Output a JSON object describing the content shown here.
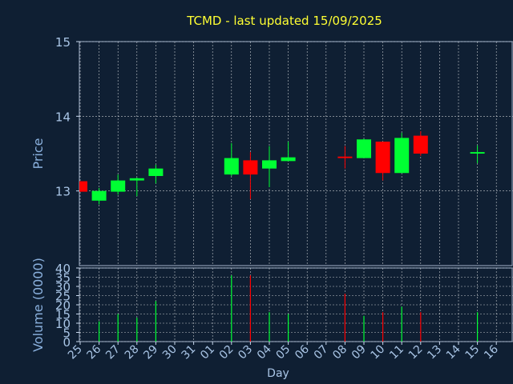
{
  "chart_data": {
    "type": "candlestick",
    "title": "TCMD - last updated 15/09/2025",
    "xlabel": "Day",
    "x_ticks": [
      "25",
      "26",
      "27",
      "28",
      "29",
      "30",
      "31",
      "01",
      "02",
      "03",
      "04",
      "05",
      "06",
      "07",
      "08",
      "09",
      "10",
      "11",
      "12",
      "13",
      "14",
      "15",
      "16"
    ],
    "price": {
      "ylabel": "Price",
      "ylim": [
        12.0,
        15.0
      ],
      "yticks": [
        "15",
        "14",
        "13"
      ],
      "ytick_values": [
        15,
        14,
        13
      ],
      "candles": [
        {
          "day": "25",
          "open": 13.13,
          "high": 13.13,
          "low": 12.99,
          "close": 12.99
        },
        {
          "day": "26",
          "open": 12.87,
          "high": 13.04,
          "low": 12.82,
          "close": 13.0
        },
        {
          "day": "27",
          "open": 12.99,
          "high": 13.22,
          "low": 12.95,
          "close": 13.14
        },
        {
          "day": "28",
          "open": 13.14,
          "high": 13.18,
          "low": 12.93,
          "close": 13.17
        },
        {
          "day": "29",
          "open": 13.2,
          "high": 13.35,
          "low": 13.1,
          "close": 13.3
        },
        {
          "day": "02",
          "open": 13.22,
          "high": 13.64,
          "low": 13.2,
          "close": 13.44
        },
        {
          "day": "03",
          "open": 13.41,
          "high": 13.52,
          "low": 12.89,
          "close": 13.22
        },
        {
          "day": "04",
          "open": 13.3,
          "high": 13.6,
          "low": 13.05,
          "close": 13.41
        },
        {
          "day": "05",
          "open": 13.4,
          "high": 13.66,
          "low": 13.4,
          "close": 13.45
        },
        {
          "day": "08",
          "open": 13.46,
          "high": 13.6,
          "low": 13.3,
          "close": 13.44
        },
        {
          "day": "09",
          "open": 13.44,
          "high": 13.7,
          "low": 13.44,
          "close": 13.69
        },
        {
          "day": "10",
          "open": 13.66,
          "high": 13.66,
          "low": 13.14,
          "close": 13.24
        },
        {
          "day": "11",
          "open": 13.24,
          "high": 13.78,
          "low": 13.24,
          "close": 13.71
        },
        {
          "day": "12",
          "open": 13.74,
          "high": 13.8,
          "low": 13.47,
          "close": 13.5
        },
        {
          "day": "15",
          "open": 13.5,
          "high": 13.61,
          "low": 13.37,
          "close": 13.52
        }
      ]
    },
    "volume": {
      "ylabel": "Volume (0000)",
      "ylim": [
        0,
        40
      ],
      "yticks": [
        "40",
        "35",
        "30",
        "25",
        "20",
        "15",
        "10",
        "5",
        "0"
      ],
      "ytick_values": [
        40,
        35,
        30,
        25,
        20,
        15,
        10,
        5,
        0
      ],
      "bars": [
        {
          "day": "26",
          "value": 11
        },
        {
          "day": "27",
          "value": 15
        },
        {
          "day": "28",
          "value": 13
        },
        {
          "day": "29",
          "value": 22
        },
        {
          "day": "02",
          "value": 36
        },
        {
          "day": "03",
          "value": 36
        },
        {
          "day": "04",
          "value": 16
        },
        {
          "day": "05",
          "value": 15
        },
        {
          "day": "08",
          "value": 26
        },
        {
          "day": "09",
          "value": 14
        },
        {
          "day": "10",
          "value": 16
        },
        {
          "day": "11",
          "value": 19
        },
        {
          "day": "12",
          "value": 16
        },
        {
          "day": "15",
          "value": 16
        }
      ]
    },
    "grid": true,
    "colors": {
      "background": "#0f1f33",
      "up": "#00ff33",
      "down": "#ff0000",
      "title": "#ffff33",
      "axis_text": "#a9c5e6",
      "grid": "#ffffff"
    }
  }
}
